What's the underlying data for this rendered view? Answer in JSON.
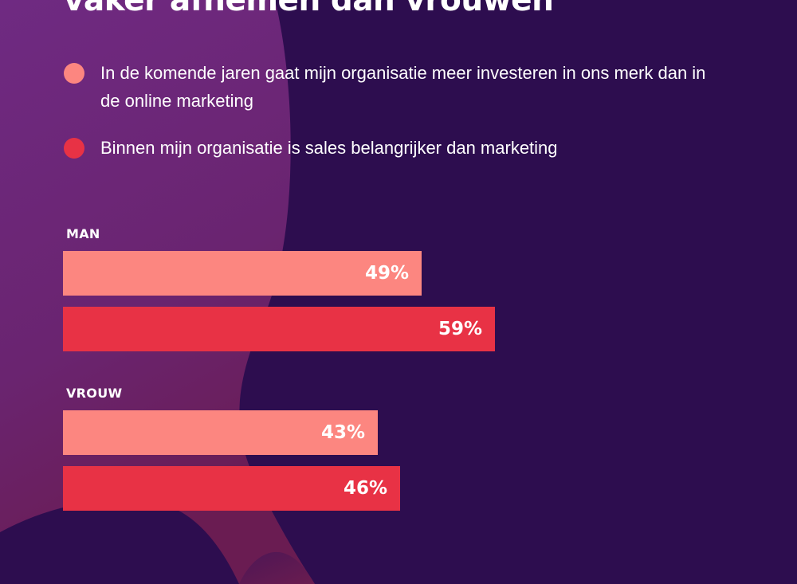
{
  "title": "vaker afnemen dan vrouwen",
  "colors": {
    "background": "#2d0d4f",
    "series_1": "#fc8680",
    "series_2": "#e83245"
  },
  "legend": [
    {
      "label": "In de komende jaren gaat mijn organisatie meer investeren in ons merk dan in de online marketing",
      "color": "#fc8680"
    },
    {
      "label": "Binnen mijn organisatie is sales belangrijker dan marketing",
      "color": "#e83245"
    }
  ],
  "chart_data": {
    "type": "bar",
    "orientation": "horizontal",
    "categories": [
      "MAN",
      "VROUW"
    ],
    "series": [
      {
        "name": "In de komende jaren gaat mijn organisatie meer investeren in ons merk dan in de online marketing",
        "values": [
          49,
          43
        ],
        "labels": [
          "49%",
          "43%"
        ],
        "color": "#fc8680"
      },
      {
        "name": "Binnen mijn organisatie is sales belangrijker dan marketing",
        "values": [
          59,
          46
        ],
        "labels": [
          "59%",
          "46%"
        ],
        "color": "#e83245"
      }
    ],
    "unit": "%",
    "xlim": [
      0,
      100
    ],
    "grid": false,
    "legend_position": "top"
  }
}
